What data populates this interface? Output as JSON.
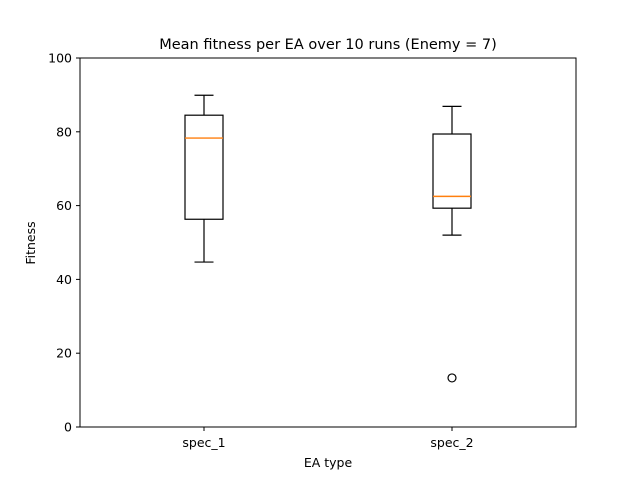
{
  "chart_data": {
    "type": "box",
    "title": "Mean fitness per EA over 10 runs (Enemy = 7)",
    "xlabel": "EA type",
    "ylabel": "Fitness",
    "ylim": [
      0,
      100
    ],
    "yticks": [
      0,
      20,
      40,
      60,
      80,
      100
    ],
    "categories": [
      "spec_1",
      "spec_2"
    ],
    "boxes": [
      {
        "category": "spec_1",
        "whisker_low": 44.7,
        "q1": 56.3,
        "median": 78.3,
        "q3": 84.5,
        "whisker_high": 89.9,
        "outliers": []
      },
      {
        "category": "spec_2",
        "whisker_low": 52.0,
        "q1": 59.3,
        "median": 62.5,
        "q3": 79.4,
        "whisker_high": 86.9,
        "outliers": [
          13.3
        ]
      }
    ],
    "grid": false,
    "colors": {
      "box": "#000000",
      "median": "#ff7f0e",
      "background": "#ffffff"
    }
  }
}
